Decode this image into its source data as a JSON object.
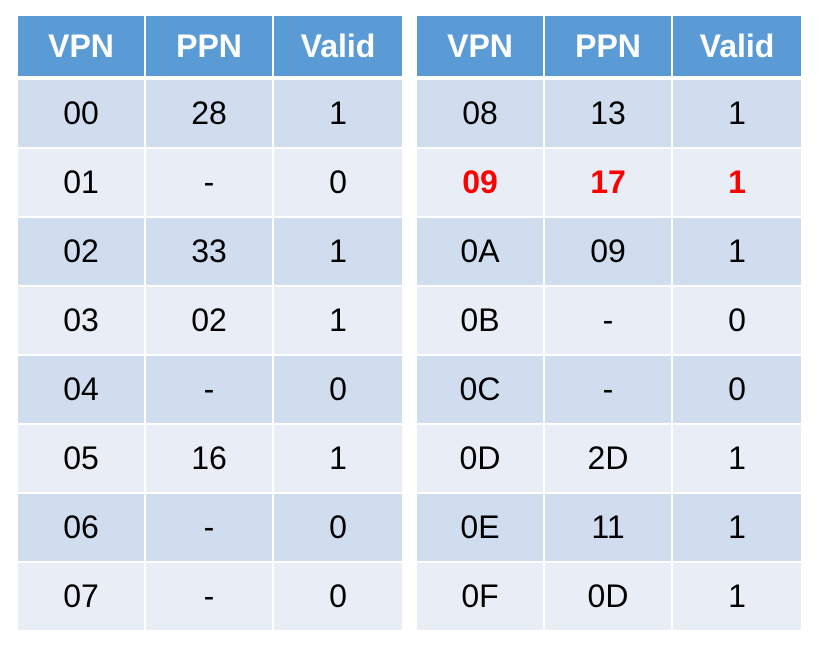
{
  "headers": [
    "VPN",
    "PPN",
    "Valid"
  ],
  "left_rows": [
    {
      "vpn": "00",
      "ppn": "28",
      "valid": "1",
      "highlight": false
    },
    {
      "vpn": "01",
      "ppn": "-",
      "valid": "0",
      "highlight": false
    },
    {
      "vpn": "02",
      "ppn": "33",
      "valid": "1",
      "highlight": false
    },
    {
      "vpn": "03",
      "ppn": "02",
      "valid": "1",
      "highlight": false
    },
    {
      "vpn": "04",
      "ppn": "-",
      "valid": "0",
      "highlight": false
    },
    {
      "vpn": "05",
      "ppn": "16",
      "valid": "1",
      "highlight": false
    },
    {
      "vpn": "06",
      "ppn": "-",
      "valid": "0",
      "highlight": false
    },
    {
      "vpn": "07",
      "ppn": "-",
      "valid": "0",
      "highlight": false
    }
  ],
  "right_rows": [
    {
      "vpn": "08",
      "ppn": "13",
      "valid": "1",
      "highlight": false
    },
    {
      "vpn": "09",
      "ppn": "17",
      "valid": "1",
      "highlight": true
    },
    {
      "vpn": "0A",
      "ppn": "09",
      "valid": "1",
      "highlight": false
    },
    {
      "vpn": "0B",
      "ppn": "-",
      "valid": "0",
      "highlight": false
    },
    {
      "vpn": "0C",
      "ppn": "-",
      "valid": "0",
      "highlight": false
    },
    {
      "vpn": "0D",
      "ppn": "2D",
      "valid": "1",
      "highlight": false
    },
    {
      "vpn": "0E",
      "ppn": "11",
      "valid": "1",
      "highlight": false
    },
    {
      "vpn": "0F",
      "ppn": "0D",
      "valid": "1",
      "highlight": false
    }
  ],
  "colors": {
    "header_bg": "#5b9bd5",
    "row_dark": "#d0ddee",
    "row_light": "#e9edf5",
    "highlight_text": "#ff0000"
  }
}
